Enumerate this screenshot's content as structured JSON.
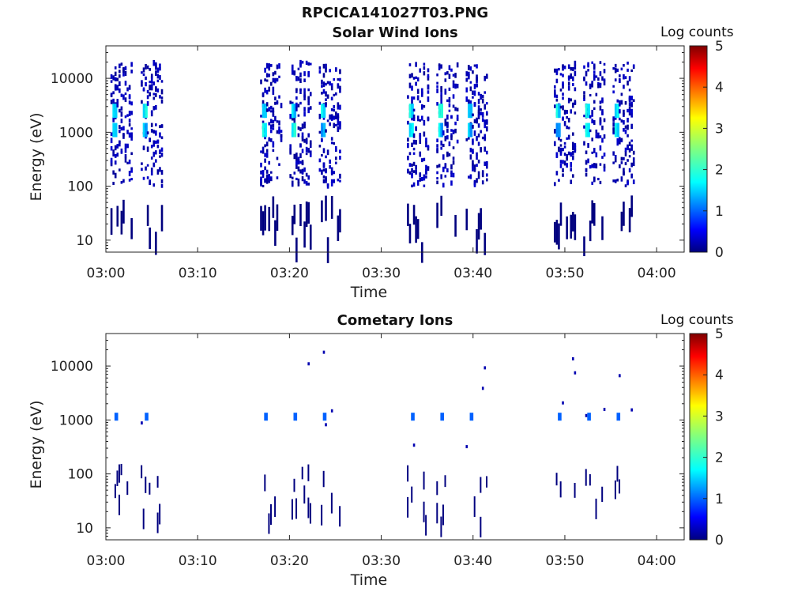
{
  "figure_title": "RPCICA141027T03.PNG",
  "chart_data": [
    {
      "type": "heatmap",
      "title": "Solar Wind Ions",
      "xlabel": "Time",
      "ylabel": "Energy (eV)",
      "y_scale": "log",
      "ylim": [
        6,
        40000
      ],
      "xlim": [
        "03:00",
        "04:03"
      ],
      "x_ticks": [
        "03:00",
        "03:10",
        "03:20",
        "03:30",
        "03:40",
        "03:50",
        "04:00"
      ],
      "y_ticks": [
        "10",
        "100",
        "1000",
        "10000"
      ],
      "colorbar": {
        "label": "Log counts",
        "min": 0,
        "max": 5,
        "ticks": [
          "0",
          "1",
          "2",
          "3",
          "4",
          "5"
        ]
      },
      "bursts_start_minutes": [
        0.5,
        3.8,
        16.8,
        20.0,
        23.2,
        32.8,
        36.0,
        39.2,
        48.8,
        52.0,
        55.2
      ],
      "peak_energies_eV": [
        1100,
        2500
      ],
      "peak_log_counts": 1.8
    },
    {
      "type": "heatmap",
      "title": "Cometary Ions",
      "xlabel": "Time",
      "ylabel": "Energy (eV)",
      "y_scale": "log",
      "ylim": [
        6,
        40000
      ],
      "xlim": [
        "03:00",
        "04:03"
      ],
      "x_ticks": [
        "03:00",
        "03:10",
        "03:20",
        "03:30",
        "03:40",
        "03:50",
        "04:00"
      ],
      "y_ticks": [
        "10",
        "100",
        "1000",
        "10000"
      ],
      "colorbar": {
        "label": "Log counts",
        "min": 0,
        "max": 5,
        "ticks": [
          "0",
          "1",
          "2",
          "3",
          "4",
          "5"
        ]
      },
      "bursts_start_minutes": [
        0.5,
        3.8,
        16.8,
        20.0,
        23.2,
        32.8,
        36.0,
        39.2,
        48.8,
        52.0,
        55.2
      ],
      "peak_energies_eV": [
        1150
      ],
      "peak_log_counts": 1.1
    }
  ]
}
